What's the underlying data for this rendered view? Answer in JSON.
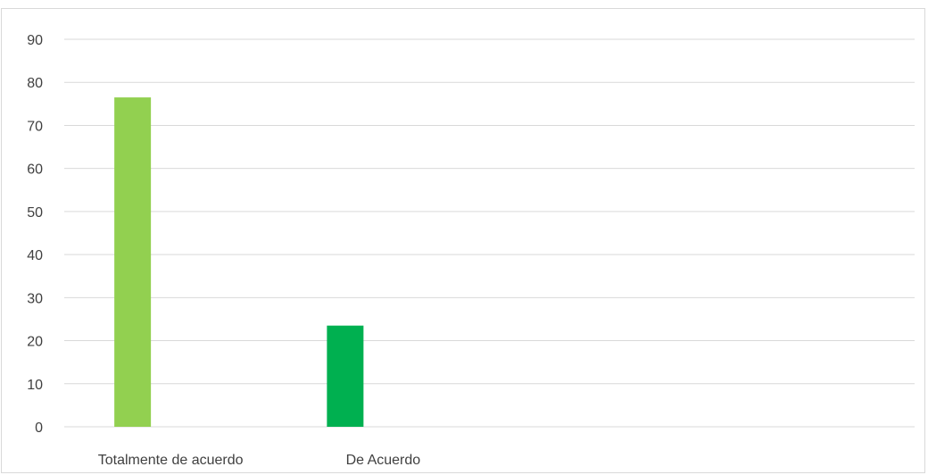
{
  "chart_data": {
    "type": "bar",
    "categories": [
      "Totalmente de acuerdo",
      "De Acuerdo",
      "",
      ""
    ],
    "values": [
      76.5,
      23.5,
      null,
      null
    ],
    "colors": [
      "#92d050",
      "#00b050"
    ],
    "yticks": [
      0,
      10,
      20,
      30,
      40,
      50,
      60,
      70,
      80,
      90
    ],
    "ylim": [
      0,
      90
    ],
    "grid": true,
    "legend": "none",
    "title": "",
    "xlabel": "",
    "ylabel": ""
  }
}
